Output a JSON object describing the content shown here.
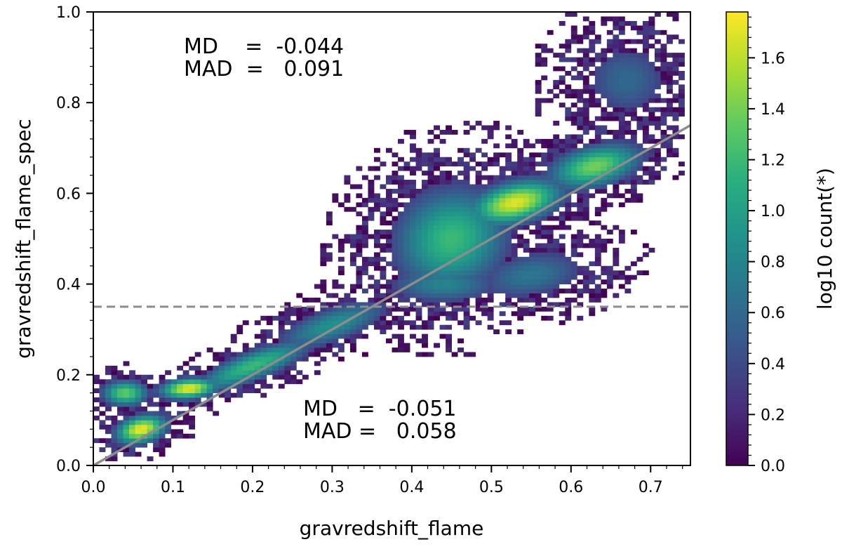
{
  "chart_data": {
    "type": "heatmap",
    "title": "",
    "xlabel": "gravredshift_flame",
    "ylabel": "gravredshift_flame_spec",
    "xlim": [
      0.0,
      0.75
    ],
    "ylim": [
      0.0,
      1.0
    ],
    "x_ticks": [
      "0.0",
      "0.1",
      "0.2",
      "0.3",
      "0.4",
      "0.5",
      "0.6",
      "0.7"
    ],
    "y_ticks": [
      "0.0",
      "0.2",
      "0.4",
      "0.6",
      "0.8",
      "1.0"
    ],
    "colorbar": {
      "label": "log10 count(*)",
      "range": [
        0.0,
        1.78
      ],
      "ticks": [
        "0.0",
        "0.2",
        "0.4",
        "0.6",
        "0.8",
        "1.0",
        "1.2",
        "1.4",
        "1.6"
      ],
      "colormap": "viridis"
    },
    "reference_lines": [
      {
        "kind": "one-to-one",
        "x": [
          0.0,
          0.75
        ],
        "y": [
          0.0,
          0.75
        ],
        "color": "#8c8c8c",
        "style": "solid"
      },
      {
        "kind": "horizontal",
        "y": 0.35,
        "color": "#8c8c8c",
        "style": "dashed"
      }
    ],
    "annotations": [
      {
        "name": "upper-stats",
        "lines": [
          "MD    =  -0.044",
          "MAD  =   0.091"
        ]
      },
      {
        "name": "lower-stats",
        "lines": [
          "MD   =  -0.051",
          "MAD =   0.058"
        ]
      }
    ],
    "density_clusters": [
      {
        "x": 0.06,
        "y": 0.08,
        "peak": 1.75,
        "sx": 0.022,
        "sy": 0.022,
        "rho": 0.3
      },
      {
        "x": 0.12,
        "y": 0.17,
        "peak": 1.75,
        "sx": 0.025,
        "sy": 0.016,
        "rho": 0.2
      },
      {
        "x": 0.04,
        "y": 0.16,
        "peak": 1.35,
        "sx": 0.02,
        "sy": 0.02,
        "rho": 0.0
      },
      {
        "x": 0.2,
        "y": 0.22,
        "peak": 1.2,
        "sx": 0.05,
        "sy": 0.04,
        "rho": 0.8
      },
      {
        "x": 0.3,
        "y": 0.31,
        "peak": 0.9,
        "sx": 0.05,
        "sy": 0.04,
        "rho": 0.7
      },
      {
        "x": 0.45,
        "y": 0.5,
        "peak": 1.2,
        "sx": 0.05,
        "sy": 0.08,
        "rho": 0.1
      },
      {
        "x": 0.53,
        "y": 0.58,
        "peak": 1.7,
        "sx": 0.04,
        "sy": 0.035,
        "rho": 0.4
      },
      {
        "x": 0.63,
        "y": 0.66,
        "peak": 1.4,
        "sx": 0.04,
        "sy": 0.035,
        "rho": 0.4
      },
      {
        "x": 0.44,
        "y": 0.4,
        "peak": 0.8,
        "sx": 0.05,
        "sy": 0.03,
        "rho": 0.0
      },
      {
        "x": 0.55,
        "y": 0.42,
        "peak": 0.7,
        "sx": 0.05,
        "sy": 0.04,
        "rho": 0.3
      },
      {
        "x": 0.67,
        "y": 0.85,
        "peak": 0.6,
        "sx": 0.04,
        "sy": 0.06,
        "rho": 0.0
      }
    ],
    "bin_size": [
      0.0075,
      0.01
    ]
  }
}
